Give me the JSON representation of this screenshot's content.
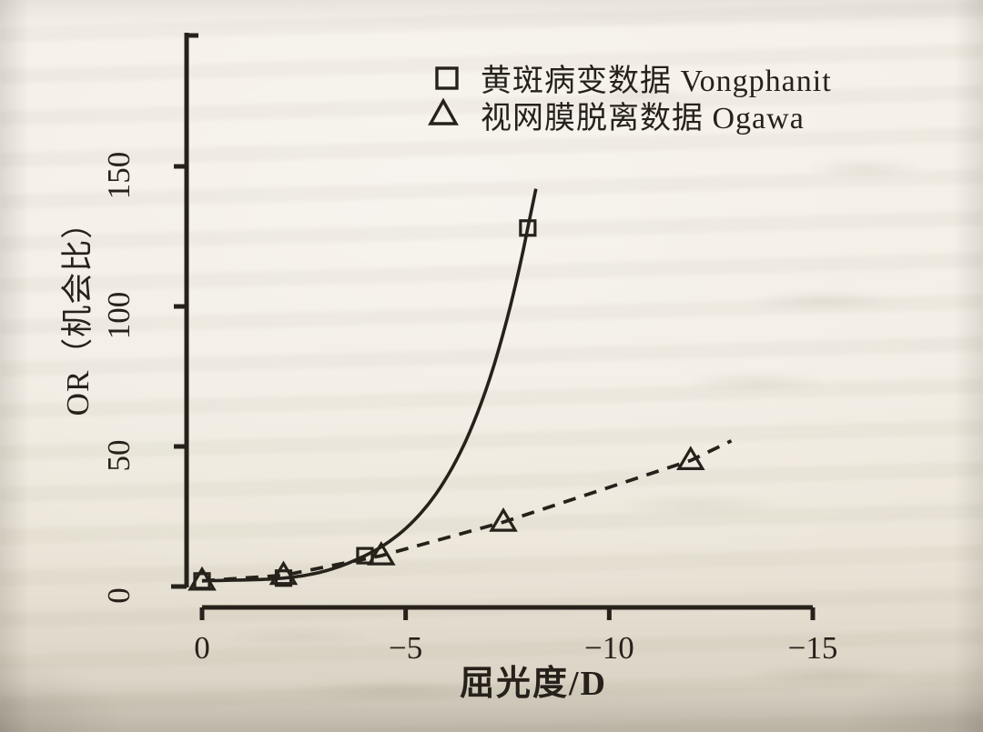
{
  "chart_data": {
    "type": "line",
    "title": "",
    "xlabel": "屈光度/D",
    "ylabel": "OR（机会比）",
    "xlim": [
      0,
      -15
    ],
    "ylim": [
      0,
      165
    ],
    "x_ticks": [
      0,
      -5,
      -10,
      -15
    ],
    "y_ticks": [
      0,
      50,
      100,
      150
    ],
    "grid": false,
    "legend_position": "top-center-inside",
    "colors": {
      "ink": "#27211b",
      "paper": "#f2ede4"
    },
    "series": [
      {
        "name": "黄斑病变数据 Vongphanit",
        "marker": "square",
        "line_style": "solid",
        "points": [
          [
            0,
            2
          ],
          [
            -2,
            3
          ],
          [
            -4,
            11
          ],
          [
            -8,
            128
          ]
        ],
        "line_extends_to": [
          -8.2,
          142
        ]
      },
      {
        "name": "视网膜脱离数据 Ogawa",
        "marker": "triangle",
        "line_style": "dashed",
        "points": [
          [
            0,
            2
          ],
          [
            -2,
            4
          ],
          [
            -4.4,
            11
          ],
          [
            -7.4,
            23
          ],
          [
            -12,
            45
          ]
        ],
        "line_extends_to": [
          -13,
          52
        ]
      }
    ]
  }
}
